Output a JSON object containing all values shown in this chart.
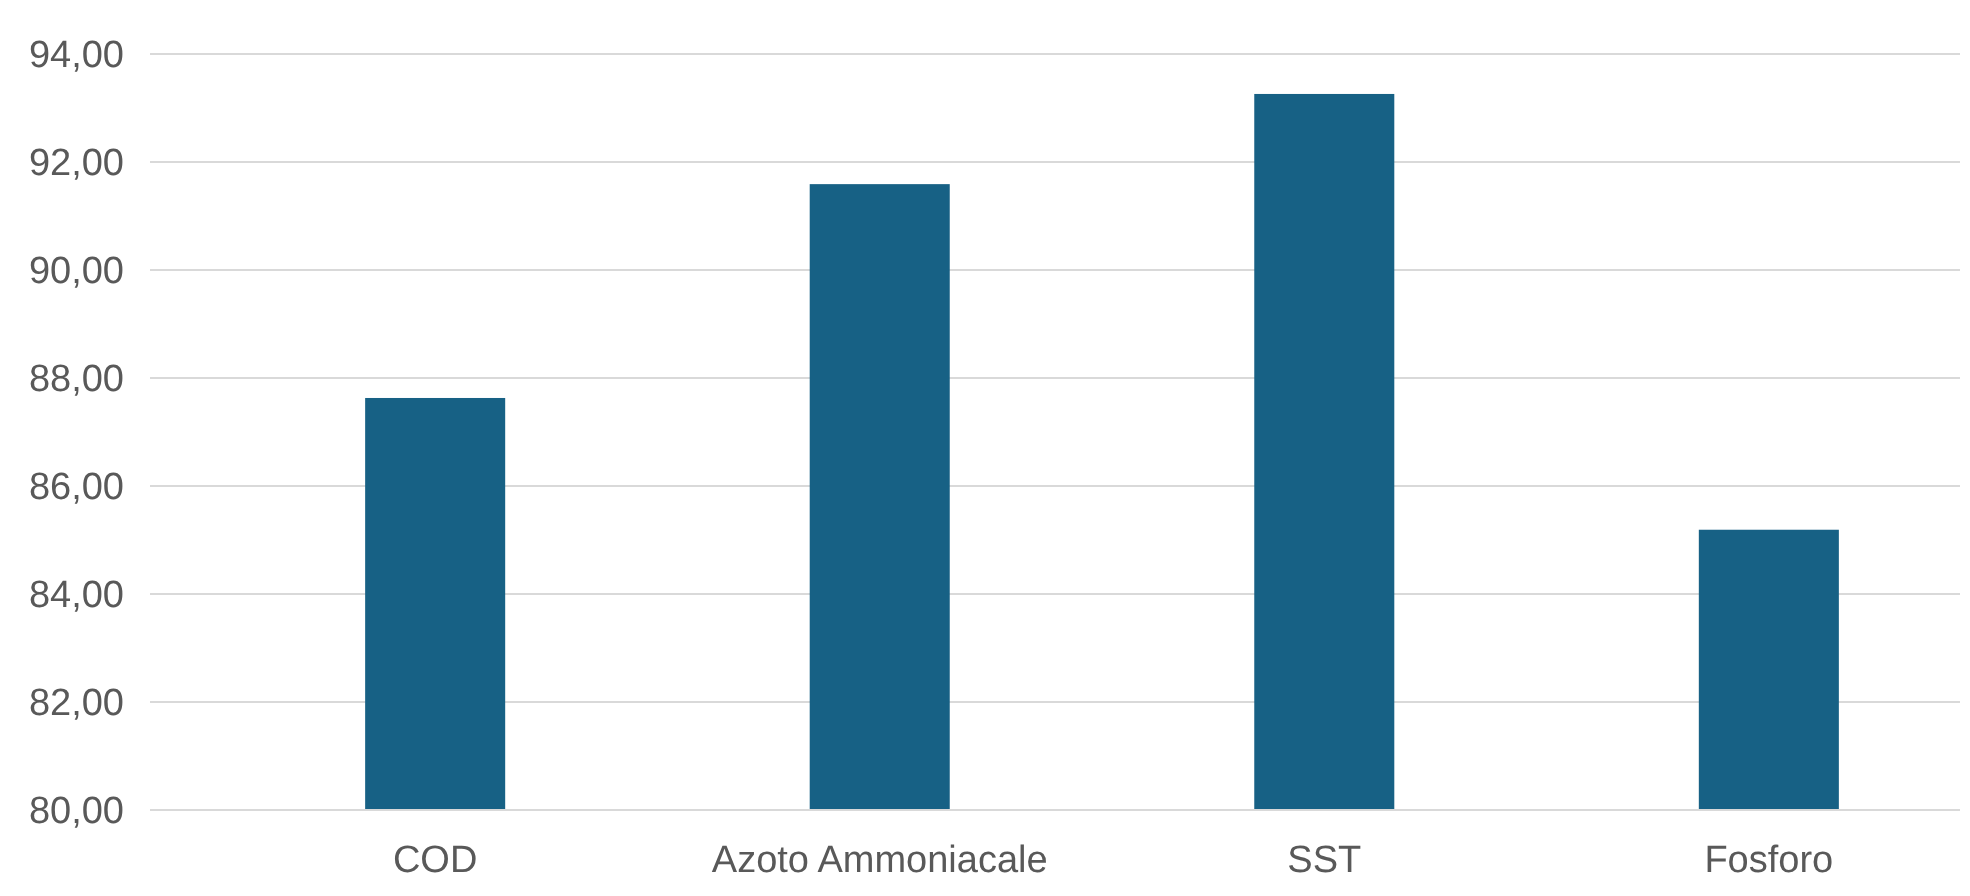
{
  "chart_data": {
    "type": "bar",
    "categories": [
      "COD",
      "Azoto Ammoniacale",
      "SST",
      "Fosforo"
    ],
    "values": [
      87.63,
      91.59,
      93.26,
      85.19
    ],
    "color": "#176185",
    "ylim": [
      80,
      94
    ],
    "yticks": [
      {
        "value": 80,
        "label": "80,00"
      },
      {
        "value": 82,
        "label": "82,00"
      },
      {
        "value": 84,
        "label": "84,00"
      },
      {
        "value": 86,
        "label": "86,00"
      },
      {
        "value": 88,
        "label": "88,00"
      },
      {
        "value": 90,
        "label": "90,00"
      },
      {
        "value": 92,
        "label": "92,00"
      },
      {
        "value": 94,
        "label": "94,00"
      }
    ],
    "grid": true
  }
}
